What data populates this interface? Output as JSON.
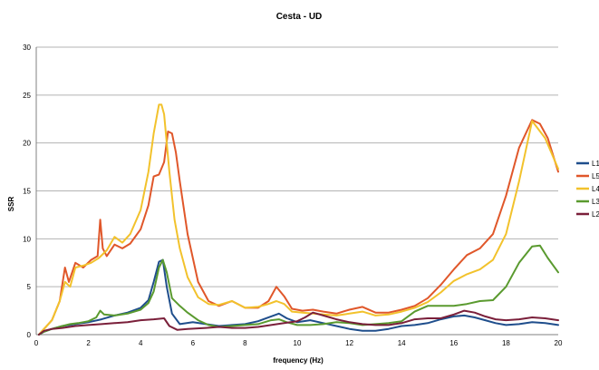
{
  "chart_data": {
    "type": "line",
    "title": "Cesta - UD",
    "xlabel": "frequency (Hz)",
    "ylabel": "SSR",
    "xlim": [
      0,
      20
    ],
    "ylim": [
      0,
      30
    ],
    "xticks": [
      0,
      2,
      4,
      6,
      8,
      10,
      12,
      14,
      16,
      18,
      20
    ],
    "yticks": [
      0,
      5,
      10,
      15,
      20,
      25,
      30
    ],
    "grid": "horizontal",
    "legend_position": "right",
    "series": [
      {
        "name": "L1",
        "color": "#1f4e8c",
        "x": [
          0.1,
          0.3,
          0.6,
          1.0,
          1.5,
          2.0,
          2.5,
          3.0,
          3.5,
          4.0,
          4.3,
          4.5,
          4.7,
          4.85,
          5.0,
          5.2,
          5.5,
          6.0,
          6.5,
          7.0,
          7.5,
          8.0,
          8.5,
          9.0,
          9.3,
          9.6,
          10.0,
          10.5,
          11.0,
          11.5,
          12.0,
          12.5,
          13.0,
          13.5,
          14.0,
          14.5,
          15.0,
          15.5,
          16.0,
          16.4,
          16.8,
          17.2,
          17.6,
          18.0,
          18.5,
          19.0,
          19.5,
          20.0
        ],
        "y": [
          0.0,
          0.3,
          0.6,
          0.9,
          1.1,
          1.3,
          1.6,
          2.0,
          2.3,
          2.8,
          3.6,
          5.5,
          7.6,
          7.8,
          5.0,
          2.2,
          1.1,
          1.3,
          1.1,
          0.9,
          1.0,
          1.1,
          1.4,
          1.9,
          2.2,
          1.7,
          1.3,
          1.5,
          1.2,
          0.9,
          0.6,
          0.4,
          0.4,
          0.6,
          0.9,
          1.0,
          1.2,
          1.6,
          1.9,
          2.0,
          1.8,
          1.5,
          1.2,
          1.0,
          1.1,
          1.3,
          1.2,
          1.0
        ]
      },
      {
        "name": "L5",
        "color": "#e0572a",
        "x": [
          0.1,
          0.3,
          0.6,
          0.9,
          1.1,
          1.25,
          1.5,
          1.8,
          2.1,
          2.35,
          2.45,
          2.55,
          2.7,
          3.0,
          3.3,
          3.6,
          4.0,
          4.3,
          4.5,
          4.7,
          4.9,
          5.05,
          5.2,
          5.35,
          5.5,
          5.8,
          6.2,
          6.6,
          7.0,
          7.5,
          8.0,
          8.5,
          8.9,
          9.2,
          9.5,
          9.8,
          10.2,
          10.6,
          11.0,
          11.5,
          12.0,
          12.5,
          13.0,
          13.5,
          14.0,
          14.5,
          15.0,
          15.5,
          16.0,
          16.5,
          17.0,
          17.5,
          18.0,
          18.5,
          19.0,
          19.3,
          19.6,
          20.0
        ],
        "y": [
          0.0,
          0.6,
          1.5,
          3.5,
          7.0,
          5.5,
          7.5,
          7.0,
          7.8,
          8.2,
          12.0,
          9.0,
          8.2,
          9.4,
          9.0,
          9.5,
          11.0,
          13.5,
          16.5,
          16.7,
          18.0,
          21.2,
          21.0,
          19.0,
          16.0,
          10.5,
          5.5,
          3.5,
          3.0,
          3.5,
          2.8,
          2.8,
          3.5,
          5.0,
          4.0,
          2.7,
          2.5,
          2.6,
          2.4,
          2.2,
          2.6,
          2.9,
          2.3,
          2.3,
          2.6,
          3.0,
          3.8,
          5.2,
          6.8,
          8.3,
          9.0,
          10.5,
          14.5,
          19.5,
          22.4,
          22.0,
          20.5,
          17.0
        ]
      },
      {
        "name": "L4",
        "color": "#f2c22c",
        "x": [
          0.1,
          0.3,
          0.6,
          0.9,
          1.1,
          1.3,
          1.5,
          1.8,
          2.1,
          2.4,
          2.7,
          3.0,
          3.3,
          3.6,
          4.0,
          4.3,
          4.5,
          4.7,
          4.8,
          4.9,
          5.1,
          5.3,
          5.5,
          5.8,
          6.2,
          6.6,
          7.0,
          7.5,
          8.0,
          8.5,
          8.9,
          9.2,
          9.5,
          9.8,
          10.2,
          10.6,
          11.0,
          11.5,
          12.0,
          12.5,
          13.0,
          13.5,
          14.0,
          14.5,
          15.0,
          15.5,
          16.0,
          16.5,
          17.0,
          17.5,
          18.0,
          18.5,
          19.0,
          19.5,
          20.0
        ],
        "y": [
          0.0,
          0.6,
          1.5,
          3.5,
          5.5,
          5.0,
          7.0,
          7.2,
          7.5,
          8.0,
          8.8,
          10.2,
          9.6,
          10.5,
          13.0,
          17.0,
          21.0,
          24.0,
          24.0,
          23.0,
          17.0,
          12.0,
          9.0,
          6.0,
          3.9,
          3.2,
          3.1,
          3.5,
          2.8,
          2.9,
          3.2,
          3.5,
          3.2,
          2.4,
          2.3,
          2.2,
          2.1,
          2.0,
          2.2,
          2.4,
          2.0,
          2.1,
          2.4,
          2.8,
          3.4,
          4.4,
          5.6,
          6.3,
          6.8,
          7.8,
          10.5,
          16.0,
          22.3,
          20.5,
          17.3
        ]
      },
      {
        "name": "L3",
        "color": "#5a9a2f",
        "x": [
          0.1,
          0.3,
          0.6,
          1.0,
          1.3,
          1.6,
          2.0,
          2.3,
          2.45,
          2.6,
          3.0,
          3.5,
          4.0,
          4.3,
          4.5,
          4.7,
          4.85,
          5.0,
          5.2,
          5.5,
          5.8,
          6.2,
          6.6,
          7.0,
          7.5,
          8.0,
          8.5,
          9.0,
          9.3,
          9.6,
          10.0,
          10.5,
          11.0,
          11.5,
          12.0,
          12.5,
          13.0,
          13.5,
          14.0,
          14.5,
          15.0,
          15.5,
          16.0,
          16.5,
          17.0,
          17.5,
          18.0,
          18.5,
          19.0,
          19.3,
          19.6,
          20.0
        ],
        "y": [
          0.0,
          0.3,
          0.6,
          0.9,
          1.1,
          1.2,
          1.4,
          1.8,
          2.5,
          2.1,
          2.0,
          2.2,
          2.6,
          3.3,
          4.5,
          7.0,
          7.8,
          6.5,
          3.8,
          3.0,
          2.3,
          1.5,
          1.0,
          0.8,
          0.9,
          1.0,
          1.1,
          1.5,
          1.6,
          1.3,
          1.0,
          1.0,
          1.1,
          1.3,
          1.2,
          1.0,
          1.1,
          1.2,
          1.4,
          2.4,
          3.0,
          3.0,
          3.0,
          3.2,
          3.5,
          3.6,
          5.0,
          7.5,
          9.2,
          9.3,
          8.0,
          6.5
        ]
      },
      {
        "name": "L2",
        "color": "#7a1f3a",
        "x": [
          0.1,
          0.3,
          0.6,
          1.0,
          1.5,
          2.0,
          2.5,
          3.0,
          3.5,
          4.0,
          4.5,
          4.9,
          5.1,
          5.4,
          5.8,
          6.5,
          7.0,
          7.5,
          8.0,
          8.5,
          9.0,
          9.5,
          10.0,
          10.3,
          10.6,
          11.0,
          11.5,
          12.0,
          12.5,
          13.0,
          13.5,
          14.0,
          14.5,
          15.0,
          15.5,
          16.0,
          16.4,
          16.8,
          17.2,
          17.6,
          18.0,
          18.5,
          19.0,
          19.5,
          20.0
        ],
        "y": [
          0.0,
          0.4,
          0.6,
          0.7,
          0.9,
          1.0,
          1.1,
          1.2,
          1.3,
          1.5,
          1.6,
          1.7,
          0.9,
          0.5,
          0.6,
          0.7,
          0.8,
          0.7,
          0.7,
          0.8,
          1.0,
          1.2,
          1.4,
          1.8,
          2.3,
          2.0,
          1.6,
          1.3,
          1.1,
          1.0,
          1.0,
          1.2,
          1.6,
          1.7,
          1.7,
          2.1,
          2.5,
          2.3,
          1.9,
          1.6,
          1.5,
          1.6,
          1.8,
          1.7,
          1.5
        ]
      }
    ]
  }
}
